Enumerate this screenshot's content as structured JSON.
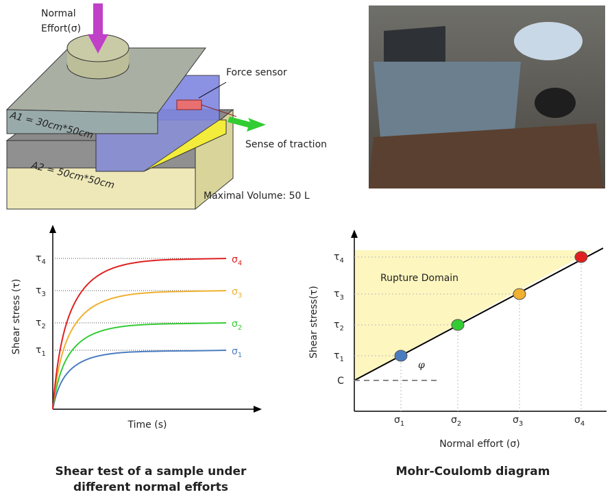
{
  "apparatus": {
    "normal_effort": [
      "Normal",
      "Effort(σ)"
    ],
    "force_sensor": "Force sensor",
    "area_top": "A1 = 30cm*50cm",
    "traction": "Sense of traction",
    "area_bottom": "A2 = 50cm*50cm",
    "volume": "Maximal Volume: 50 L"
  },
  "symbols": {
    "tau": "τ",
    "sigma": "σ"
  },
  "levels": [
    {
      "index": "1",
      "color": "#4a7cc0"
    },
    {
      "index": "2",
      "color": "#33cc33"
    },
    {
      "index": "3",
      "color": "#f0b030"
    },
    {
      "index": "4",
      "color": "#e02020"
    }
  ],
  "shear_test": {
    "y_label": "Shear stress (τ)",
    "x_label": "Time (s)",
    "caption": [
      "Shear test of a sample under",
      "different normal efforts"
    ]
  },
  "mohr_coulomb": {
    "y_label": "Shear stress(τ)",
    "x_label": "Normal effort (σ)",
    "domain": "Rupture Domain",
    "angle": "φ",
    "cohesion": "C",
    "caption": "Mohr-Coulomb diagram"
  }
}
